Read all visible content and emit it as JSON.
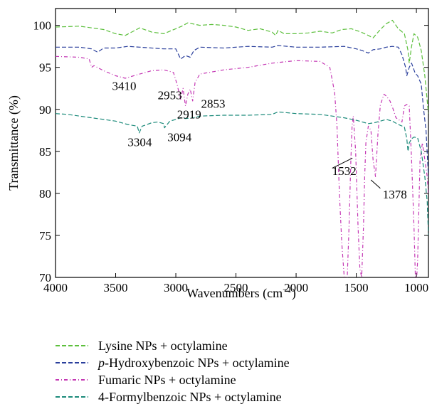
{
  "chart_data": {
    "type": "line",
    "xlabel": "Wavenumbers (cm",
    "xlabel_sup": "−1",
    "xlabel_close": ")",
    "ylabel": "Transmittance (%)",
    "xlim": [
      4000,
      900
    ],
    "ylim": [
      70,
      102
    ],
    "x_ticks": [
      4000,
      3500,
      3000,
      2500,
      2000,
      1500,
      1000
    ],
    "y_ticks": [
      70,
      75,
      80,
      85,
      90,
      95,
      100
    ],
    "series": [
      {
        "name": "Lysine NPs + octylamine",
        "color": "#5cbf3c",
        "dash": "6,3",
        "points": [
          [
            4000,
            99.8
          ],
          [
            3800,
            99.9
          ],
          [
            3600,
            99.5
          ],
          [
            3500,
            99.0
          ],
          [
            3420,
            98.8
          ],
          [
            3300,
            99.7
          ],
          [
            3200,
            99.2
          ],
          [
            3100,
            99.0
          ],
          [
            3000,
            99.6
          ],
          [
            2950,
            99.9
          ],
          [
            2900,
            100.3
          ],
          [
            2800,
            100.0
          ],
          [
            2700,
            100.1
          ],
          [
            2600,
            100.0
          ],
          [
            2500,
            99.8
          ],
          [
            2400,
            99.4
          ],
          [
            2300,
            99.6
          ],
          [
            2200,
            99.2
          ],
          [
            2170,
            98.8
          ],
          [
            2150,
            99.4
          ],
          [
            2100,
            99.0
          ],
          [
            2000,
            99.0
          ],
          [
            1900,
            99.1
          ],
          [
            1800,
            99.3
          ],
          [
            1700,
            99.1
          ],
          [
            1620,
            99.5
          ],
          [
            1540,
            99.6
          ],
          [
            1460,
            99.2
          ],
          [
            1400,
            98.8
          ],
          [
            1360,
            98.5
          ],
          [
            1300,
            99.5
          ],
          [
            1250,
            100.2
          ],
          [
            1200,
            100.6
          ],
          [
            1150,
            99.6
          ],
          [
            1100,
            99.0
          ],
          [
            1070,
            97.0
          ],
          [
            1060,
            95.5
          ],
          [
            1040,
            97.5
          ],
          [
            1020,
            99.0
          ],
          [
            990,
            98.6
          ],
          [
            960,
            97.0
          ],
          [
            930,
            94.0
          ],
          [
            910,
            91.0
          ],
          [
            900,
            89.5
          ]
        ]
      },
      {
        "name": "p-Hydroxybenzoic NPs + octylamine",
        "color": "#2a3f9c",
        "dash": "6,3",
        "points": [
          [
            4000,
            97.4
          ],
          [
            3800,
            97.4
          ],
          [
            3700,
            97.2
          ],
          [
            3650,
            96.8
          ],
          [
            3600,
            97.3
          ],
          [
            3500,
            97.3
          ],
          [
            3400,
            97.5
          ],
          [
            3300,
            97.4
          ],
          [
            3100,
            97.2
          ],
          [
            3000,
            97.2
          ],
          [
            2960,
            96.0
          ],
          [
            2920,
            96.4
          ],
          [
            2880,
            96.2
          ],
          [
            2850,
            97.0
          ],
          [
            2800,
            97.4
          ],
          [
            2600,
            97.3
          ],
          [
            2400,
            97.5
          ],
          [
            2200,
            97.4
          ],
          [
            2150,
            97.6
          ],
          [
            2000,
            97.4
          ],
          [
            1800,
            97.4
          ],
          [
            1600,
            97.5
          ],
          [
            1500,
            97.2
          ],
          [
            1450,
            97.0
          ],
          [
            1400,
            96.7
          ],
          [
            1360,
            97.1
          ],
          [
            1300,
            97.2
          ],
          [
            1250,
            97.4
          ],
          [
            1200,
            97.5
          ],
          [
            1150,
            97.4
          ],
          [
            1120,
            96.5
          ],
          [
            1090,
            95.0
          ],
          [
            1080,
            94.0
          ],
          [
            1060,
            95.0
          ],
          [
            1040,
            95.5
          ],
          [
            1010,
            94.3
          ],
          [
            990,
            94.0
          ],
          [
            960,
            93.0
          ],
          [
            940,
            90.0
          ],
          [
            920,
            87.5
          ],
          [
            900,
            82.0
          ]
        ]
      },
      {
        "name": "Fumaric NPs + octylamine",
        "color": "#c437b4",
        "dash": "5,3,1,3",
        "points": [
          [
            4000,
            96.3
          ],
          [
            3800,
            96.2
          ],
          [
            3720,
            96.0
          ],
          [
            3700,
            95.0
          ],
          [
            3680,
            95.2
          ],
          [
            3600,
            94.6
          ],
          [
            3500,
            94.0
          ],
          [
            3420,
            93.7
          ],
          [
            3300,
            94.2
          ],
          [
            3200,
            94.6
          ],
          [
            3100,
            94.7
          ],
          [
            3020,
            94.4
          ],
          [
            2990,
            93.0
          ],
          [
            2960,
            91.2
          ],
          [
            2940,
            92.5
          ],
          [
            2920,
            90.4
          ],
          [
            2900,
            91.8
          ],
          [
            2880,
            92.4
          ],
          [
            2860,
            91.0
          ],
          [
            2840,
            93.2
          ],
          [
            2800,
            94.2
          ],
          [
            2600,
            94.7
          ],
          [
            2400,
            95.0
          ],
          [
            2200,
            95.5
          ],
          [
            2000,
            95.8
          ],
          [
            1800,
            95.7
          ],
          [
            1720,
            95.0
          ],
          [
            1680,
            92.0
          ],
          [
            1660,
            88.0
          ],
          [
            1640,
            80.0
          ],
          [
            1620,
            74.0
          ],
          [
            1600,
            70.0
          ],
          [
            1580,
            68.0
          ],
          [
            1560,
            76.0
          ],
          [
            1545,
            84.0
          ],
          [
            1535,
            88.0
          ],
          [
            1525,
            89.2
          ],
          [
            1505,
            85.0
          ],
          [
            1485,
            76.0
          ],
          [
            1470,
            71.0
          ],
          [
            1455,
            70.0
          ],
          [
            1440,
            76.0
          ],
          [
            1430,
            82.0
          ],
          [
            1420,
            86.0
          ],
          [
            1400,
            88.0
          ],
          [
            1378,
            87.5
          ],
          [
            1360,
            84.0
          ],
          [
            1340,
            82.0
          ],
          [
            1320,
            87.0
          ],
          [
            1300,
            90.5
          ],
          [
            1270,
            91.8
          ],
          [
            1250,
            91.6
          ],
          [
            1220,
            91.0
          ],
          [
            1200,
            90.3
          ],
          [
            1170,
            89.0
          ],
          [
            1120,
            88.5
          ],
          [
            1100,
            90.4
          ],
          [
            1080,
            90.6
          ],
          [
            1060,
            90.4
          ],
          [
            1040,
            84.0
          ],
          [
            1020,
            76.0
          ],
          [
            1005,
            68.0
          ],
          [
            990,
            72.0
          ],
          [
            970,
            84.0
          ],
          [
            950,
            86.0
          ],
          [
            930,
            84.0
          ],
          [
            910,
            82.0
          ],
          [
            900,
            80.0
          ]
        ]
      },
      {
        "name": "4-Formylbenzoic NPs + octylamine",
        "color": "#1b8a7a",
        "dash": "6,3",
        "points": [
          [
            4000,
            89.5
          ],
          [
            3900,
            89.4
          ],
          [
            3800,
            89.2
          ],
          [
            3700,
            89.0
          ],
          [
            3600,
            88.8
          ],
          [
            3500,
            88.6
          ],
          [
            3400,
            88.2
          ],
          [
            3320,
            88.0
          ],
          [
            3304,
            87.2
          ],
          [
            3280,
            88.0
          ],
          [
            3200,
            88.4
          ],
          [
            3150,
            88.5
          ],
          [
            3100,
            88.3
          ],
          [
            3094,
            87.8
          ],
          [
            3050,
            88.6
          ],
          [
            3000,
            88.8
          ],
          [
            2960,
            89.0
          ],
          [
            2919,
            88.9
          ],
          [
            2850,
            89.0
          ],
          [
            2800,
            89.2
          ],
          [
            2600,
            89.3
          ],
          [
            2400,
            89.3
          ],
          [
            2200,
            89.4
          ],
          [
            2150,
            89.7
          ],
          [
            2000,
            89.5
          ],
          [
            1800,
            89.4
          ],
          [
            1700,
            89.2
          ],
          [
            1600,
            89.0
          ],
          [
            1500,
            88.7
          ],
          [
            1400,
            88.3
          ],
          [
            1350,
            88.4
          ],
          [
            1300,
            88.6
          ],
          [
            1250,
            88.8
          ],
          [
            1200,
            88.6
          ],
          [
            1150,
            88.2
          ],
          [
            1100,
            87.9
          ],
          [
            1080,
            86.5
          ],
          [
            1070,
            85.0
          ],
          [
            1060,
            86.0
          ],
          [
            1040,
            86.5
          ],
          [
            1020,
            86.7
          ],
          [
            990,
            86.6
          ],
          [
            960,
            85.0
          ],
          [
            930,
            82.0
          ],
          [
            910,
            79.0
          ],
          [
            900,
            75.0
          ]
        ]
      }
    ],
    "annotations": [
      {
        "text": "3410",
        "x": 3530,
        "y": 92.3
      },
      {
        "text": "2953",
        "x": 3150,
        "y": 91.2
      },
      {
        "text": "2853",
        "x": 2790,
        "y": 90.2
      },
      {
        "text": "2919",
        "x": 2990,
        "y": 88.9
      },
      {
        "text": "3304",
        "x": 3400,
        "y": 85.6
      },
      {
        "text": "3094",
        "x": 3070,
        "y": 86.2
      },
      {
        "text": "1532",
        "x": 1700,
        "y": 82.2
      },
      {
        "text": "1378",
        "x": 1280,
        "y": 79.4
      }
    ],
    "leaders": [
      {
        "from": [
          1700,
          83.0
        ],
        "to": [
          1532,
          84.2
        ]
      },
      {
        "from": [
          1300,
          80.6
        ],
        "to": [
          1378,
          81.6
        ]
      }
    ],
    "grid": false,
    "legend_position": "bottom"
  }
}
